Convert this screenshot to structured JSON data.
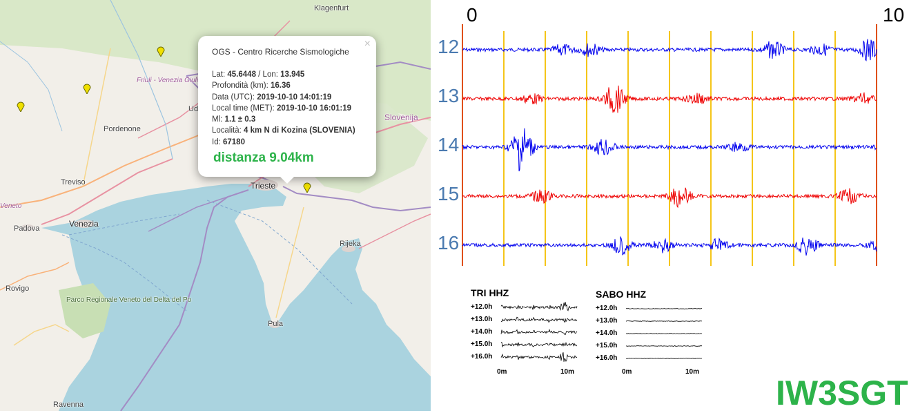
{
  "map": {
    "places": {
      "klagenfurt": "Klagenfurt",
      "region": "Friuli - Venezia Giulia / Furlanija - Julijska krajina",
      "udine": "Ud",
      "pordenone": "Pordenone",
      "slovenija": "Slovenija",
      "treviso": "Treviso",
      "veneto": "Veneto",
      "padova": "Padova",
      "venezia": "Venezia",
      "trieste": "Trieste",
      "rijeka": "Rijeka",
      "rovigo": "Rovigo",
      "park": "Parco Regionale Veneto del Delta del Po",
      "pula": "Pula",
      "ravenna": "Ravenna"
    },
    "popup": {
      "title": "OGS - Centro Ricerche Sismologiche",
      "lat_label": "Lat:",
      "lat": "45.6448",
      "lon_label": "/ Lon:",
      "lon": "13.945",
      "depth_label": "Profondità (km):",
      "depth": "16.36",
      "utc_label": "Data (UTC):",
      "utc": "2019-10-10 14:01:19",
      "met_label": "Local time (MET):",
      "met": "2019-10-10 16:01:19",
      "ml_label": "Ml:",
      "ml": "1.1 ± 0.3",
      "loc_label": "Località:",
      "loc": "4 km N di Kozina (SLOVENIA)",
      "id_label": "Id:",
      "id": "67180",
      "distance": "distanza 9.04km",
      "close": "×"
    }
  },
  "seismogram": {
    "scale_start": "0",
    "scale_end": "10",
    "hours": [
      "12",
      "13",
      "14",
      "15",
      "16"
    ],
    "trace_colors": [
      "#0000ee",
      "#ee0000",
      "#0000ee",
      "#ee0000",
      "#0000ee"
    ],
    "grid_color": "#f5c518",
    "edge_color": "#e05000"
  },
  "mini_plots": [
    {
      "title": "TRI HHZ",
      "hours": [
        "+12.0h",
        "+13.0h",
        "+14.0h",
        "+15.0h",
        "+16.0h"
      ],
      "x_start": "0m",
      "x_end": "10m"
    },
    {
      "title": "SABO HHZ",
      "hours": [
        "+12.0h",
        "+13.0h",
        "+14.0h",
        "+15.0h",
        "+16.0h"
      ],
      "x_start": "0m",
      "x_end": "10m"
    }
  ],
  "callsign": "IW3SGT"
}
